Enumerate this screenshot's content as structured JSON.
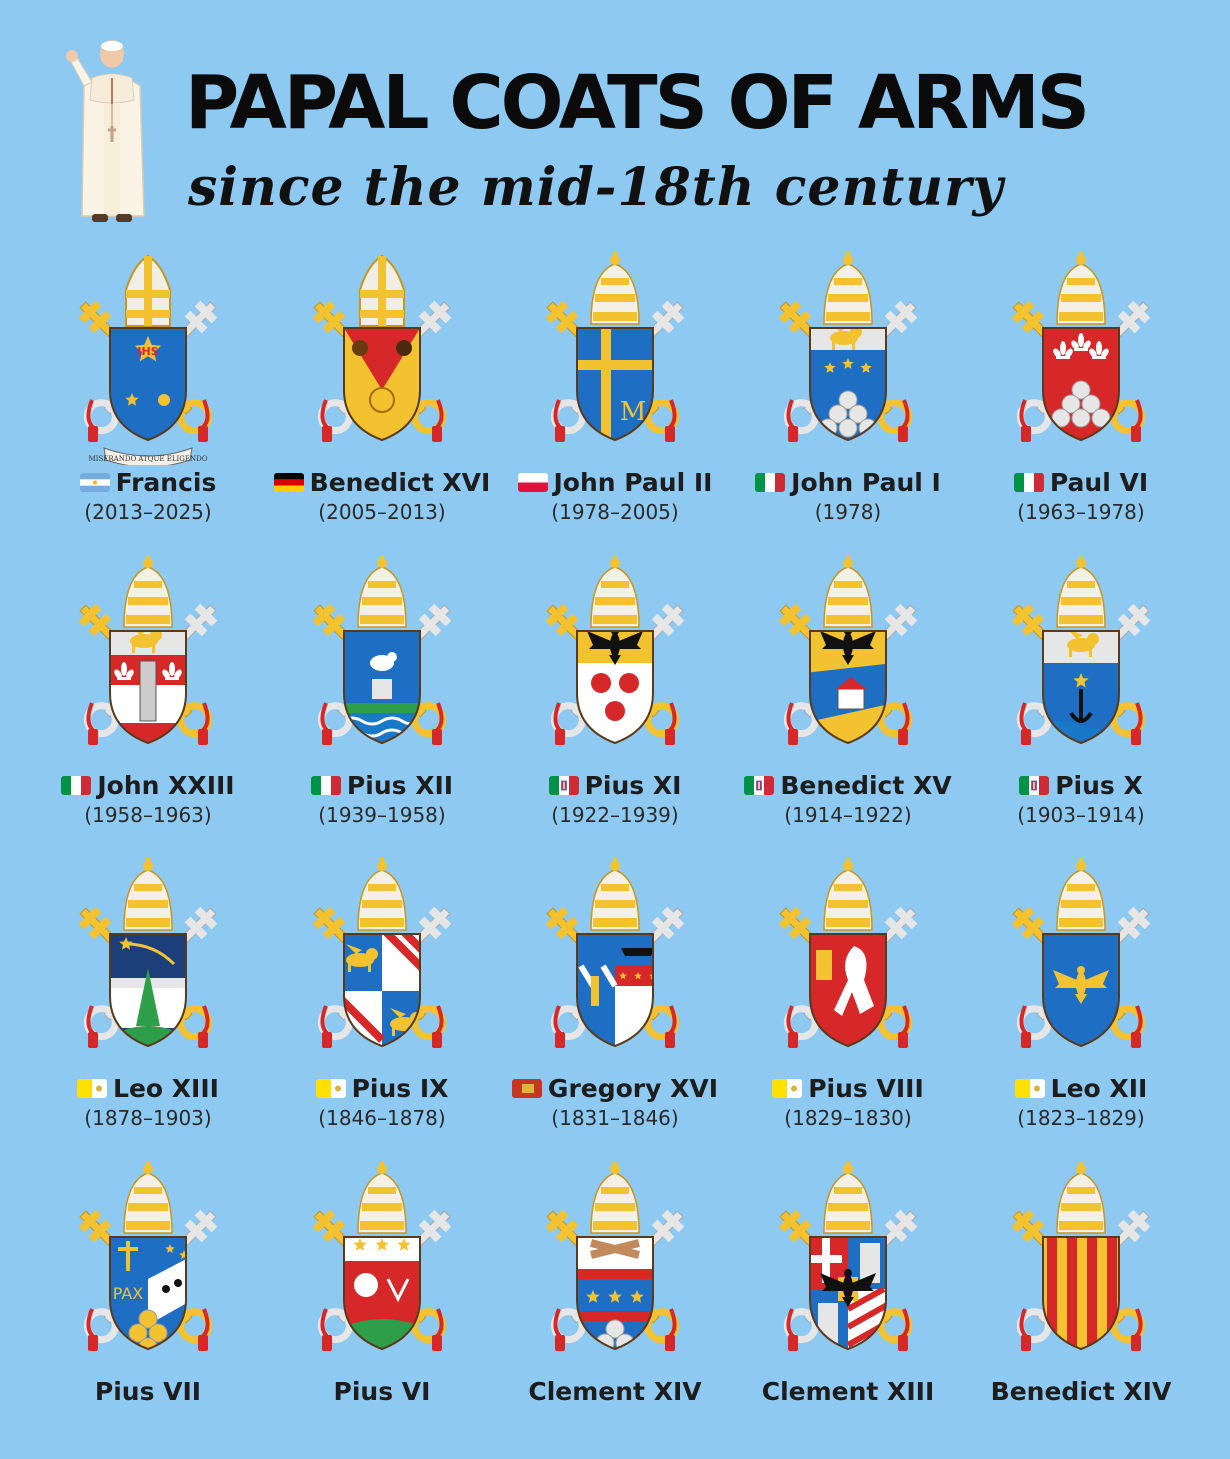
{
  "header": {
    "title": "PAPAL COATS OF ARMS",
    "subtitle": "since the mid-18th century"
  },
  "motto_francis": "MISERANDO ATQUE ELIGENDO",
  "popes": [
    {
      "name": "Francis",
      "years": "(2013–2025)",
      "flag": "argentina",
      "crest": "francis"
    },
    {
      "name": "Benedict XVI",
      "years": "(2005–2013)",
      "flag": "germany",
      "crest": "benedict16"
    },
    {
      "name": "John Paul II",
      "years": "(1978–2005)",
      "flag": "poland",
      "crest": "jp2"
    },
    {
      "name": "John Paul I",
      "years": "(1978)",
      "flag": "italy",
      "crest": "jp1"
    },
    {
      "name": "Paul VI",
      "years": "(1963–1978)",
      "flag": "italy",
      "crest": "paul6"
    },
    {
      "name": "John XXIII",
      "years": "(1958–1963)",
      "flag": "italy",
      "crest": "john23"
    },
    {
      "name": "Pius XII",
      "years": "(1939–1958)",
      "flag": "italy",
      "crest": "pius12"
    },
    {
      "name": "Pius XI",
      "years": "(1922–1939)",
      "flag": "italy-kingdom",
      "crest": "pius11"
    },
    {
      "name": "Benedict XV",
      "years": "(1914–1922)",
      "flag": "italy-kingdom",
      "crest": "benedict15"
    },
    {
      "name": "Pius X",
      "years": "(1903–1914)",
      "flag": "italy-kingdom",
      "crest": "pius10"
    },
    {
      "name": "Leo XIII",
      "years": "(1878–1903)",
      "flag": "papal-states",
      "crest": "leo13"
    },
    {
      "name": "Pius IX",
      "years": "(1846–1878)",
      "flag": "papal-states",
      "crest": "pius9"
    },
    {
      "name": "Gregory XVI",
      "years": "(1831–1846)",
      "flag": "venice",
      "crest": "gregory16"
    },
    {
      "name": "Pius VIII",
      "years": "(1829–1830)",
      "flag": "papal-states",
      "crest": "pius8"
    },
    {
      "name": "Leo XII",
      "years": "(1823–1829)",
      "flag": "papal-states",
      "crest": "leo12"
    },
    {
      "name": "Pius VII",
      "years": "",
      "flag": "",
      "crest": "pius7"
    },
    {
      "name": "Pius VI",
      "years": "",
      "flag": "",
      "crest": "pius6"
    },
    {
      "name": "Clement XIV",
      "years": "",
      "flag": "",
      "crest": "clement14"
    },
    {
      "name": "Clement XIII",
      "years": "",
      "flag": "",
      "crest": "clement13"
    },
    {
      "name": "Benedict XIV",
      "years": "",
      "flag": "",
      "crest": "benedict14"
    }
  ],
  "pax_text": "PAX",
  "colors": {
    "background": "#8ec9f2",
    "gold": "#f2c230",
    "silver": "#e3e3e3",
    "red": "#d62828",
    "blue": "#1e6fc4"
  }
}
